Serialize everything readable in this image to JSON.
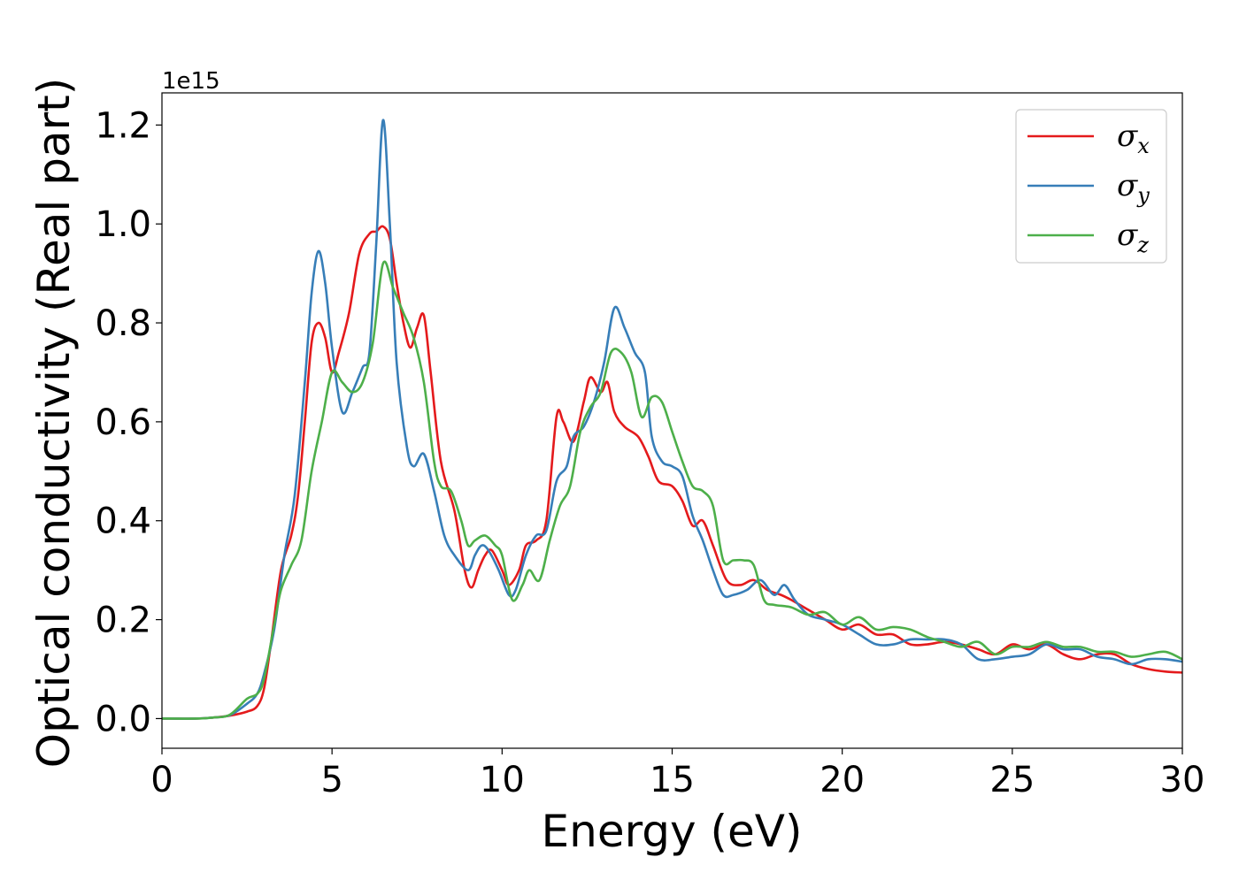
{
  "chart_data": {
    "type": "line",
    "title": "",
    "xlabel": "Energy (eV)",
    "ylabel": "Optical conductivity (Real part)",
    "y_offset_label": "1e15",
    "xlim": [
      0,
      30
    ],
    "ylim": [
      -0.06,
      1.265
    ],
    "x_ticks": [
      0,
      5,
      10,
      15,
      20,
      25,
      30
    ],
    "x_tick_labels": [
      "0",
      "5",
      "10",
      "15",
      "20",
      "25",
      "30"
    ],
    "y_ticks": [
      0.0,
      0.2,
      0.4,
      0.6,
      0.8,
      1.0,
      1.2
    ],
    "y_tick_labels": [
      "0.0",
      "0.2",
      "0.4",
      "0.6",
      "0.8",
      "1.0",
      "1.2"
    ],
    "grid": false,
    "legend_position": "top-right",
    "series": [
      {
        "name": "σx",
        "legend_symbol": "σ",
        "legend_subscript": "x",
        "color": "#e41a1c",
        "points": [
          [
            0,
            0
          ],
          [
            1,
            0
          ],
          [
            1.5,
            0.002
          ],
          [
            2,
            0.006
          ],
          [
            2.5,
            0.014
          ],
          [
            2.8,
            0.025
          ],
          [
            3.0,
            0.06
          ],
          [
            3.2,
            0.15
          ],
          [
            3.5,
            0.3
          ],
          [
            3.8,
            0.37
          ],
          [
            4.0,
            0.45
          ],
          [
            4.2,
            0.6
          ],
          [
            4.4,
            0.76
          ],
          [
            4.6,
            0.8
          ],
          [
            4.8,
            0.77
          ],
          [
            5.0,
            0.7
          ],
          [
            5.2,
            0.74
          ],
          [
            5.5,
            0.82
          ],
          [
            5.8,
            0.94
          ],
          [
            6.1,
            0.98
          ],
          [
            6.3,
            0.985
          ],
          [
            6.5,
            0.995
          ],
          [
            6.7,
            0.97
          ],
          [
            6.9,
            0.88
          ],
          [
            7.1,
            0.8
          ],
          [
            7.3,
            0.75
          ],
          [
            7.5,
            0.79
          ],
          [
            7.7,
            0.815
          ],
          [
            7.9,
            0.7
          ],
          [
            8.2,
            0.52
          ],
          [
            8.6,
            0.42
          ],
          [
            8.9,
            0.3
          ],
          [
            9.1,
            0.265
          ],
          [
            9.3,
            0.3
          ],
          [
            9.5,
            0.33
          ],
          [
            9.7,
            0.34
          ],
          [
            10.0,
            0.3
          ],
          [
            10.2,
            0.27
          ],
          [
            10.5,
            0.3
          ],
          [
            10.7,
            0.35
          ],
          [
            11.0,
            0.36
          ],
          [
            11.3,
            0.4
          ],
          [
            11.6,
            0.61
          ],
          [
            11.8,
            0.6
          ],
          [
            12.1,
            0.56
          ],
          [
            12.4,
            0.64
          ],
          [
            12.6,
            0.69
          ],
          [
            12.9,
            0.66
          ],
          [
            13.1,
            0.68
          ],
          [
            13.3,
            0.62
          ],
          [
            13.6,
            0.59
          ],
          [
            14.0,
            0.57
          ],
          [
            14.3,
            0.53
          ],
          [
            14.6,
            0.48
          ],
          [
            15.0,
            0.47
          ],
          [
            15.3,
            0.44
          ],
          [
            15.6,
            0.39
          ],
          [
            15.9,
            0.4
          ],
          [
            16.2,
            0.35
          ],
          [
            16.6,
            0.28
          ],
          [
            17.0,
            0.27
          ],
          [
            17.4,
            0.28
          ],
          [
            17.8,
            0.26
          ],
          [
            18.2,
            0.25
          ],
          [
            18.5,
            0.24
          ],
          [
            19.0,
            0.22
          ],
          [
            19.5,
            0.2
          ],
          [
            20.0,
            0.18
          ],
          [
            20.5,
            0.19
          ],
          [
            21.0,
            0.17
          ],
          [
            21.5,
            0.17
          ],
          [
            22.0,
            0.15
          ],
          [
            22.5,
            0.15
          ],
          [
            23.0,
            0.155
          ],
          [
            23.5,
            0.15
          ],
          [
            24.0,
            0.14
          ],
          [
            24.5,
            0.13
          ],
          [
            25.0,
            0.15
          ],
          [
            25.5,
            0.14
          ],
          [
            26.0,
            0.15
          ],
          [
            26.5,
            0.13
          ],
          [
            27.0,
            0.12
          ],
          [
            27.5,
            0.13
          ],
          [
            28.0,
            0.13
          ],
          [
            28.5,
            0.11
          ],
          [
            29.0,
            0.1
          ],
          [
            29.5,
            0.095
          ],
          [
            30.0,
            0.093
          ]
        ]
      },
      {
        "name": "σy",
        "legend_symbol": "σ",
        "legend_subscript": "y",
        "color": "#377eb8",
        "points": [
          [
            0,
            0
          ],
          [
            1,
            0
          ],
          [
            1.5,
            0.002
          ],
          [
            2,
            0.007
          ],
          [
            2.5,
            0.03
          ],
          [
            2.8,
            0.05
          ],
          [
            3.0,
            0.09
          ],
          [
            3.3,
            0.18
          ],
          [
            3.6,
            0.33
          ],
          [
            3.9,
            0.45
          ],
          [
            4.2,
            0.68
          ],
          [
            4.4,
            0.86
          ],
          [
            4.6,
            0.945
          ],
          [
            4.8,
            0.88
          ],
          [
            5.0,
            0.75
          ],
          [
            5.3,
            0.62
          ],
          [
            5.6,
            0.66
          ],
          [
            5.9,
            0.71
          ],
          [
            6.1,
            0.74
          ],
          [
            6.3,
            0.96
          ],
          [
            6.5,
            1.21
          ],
          [
            6.7,
            1.0
          ],
          [
            6.9,
            0.72
          ],
          [
            7.2,
            0.55
          ],
          [
            7.4,
            0.51
          ],
          [
            7.7,
            0.535
          ],
          [
            8.0,
            0.46
          ],
          [
            8.3,
            0.37
          ],
          [
            8.6,
            0.33
          ],
          [
            9.0,
            0.3
          ],
          [
            9.2,
            0.33
          ],
          [
            9.4,
            0.35
          ],
          [
            9.6,
            0.34
          ],
          [
            9.9,
            0.3
          ],
          [
            10.2,
            0.25
          ],
          [
            10.4,
            0.26
          ],
          [
            10.7,
            0.33
          ],
          [
            11.0,
            0.37
          ],
          [
            11.3,
            0.38
          ],
          [
            11.6,
            0.48
          ],
          [
            11.9,
            0.51
          ],
          [
            12.1,
            0.57
          ],
          [
            12.4,
            0.59
          ],
          [
            12.7,
            0.64
          ],
          [
            13.0,
            0.72
          ],
          [
            13.3,
            0.83
          ],
          [
            13.6,
            0.79
          ],
          [
            13.9,
            0.74
          ],
          [
            14.2,
            0.7
          ],
          [
            14.4,
            0.57
          ],
          [
            14.7,
            0.52
          ],
          [
            15.0,
            0.51
          ],
          [
            15.3,
            0.49
          ],
          [
            15.6,
            0.41
          ],
          [
            15.9,
            0.36
          ],
          [
            16.2,
            0.3
          ],
          [
            16.5,
            0.25
          ],
          [
            16.8,
            0.25
          ],
          [
            17.2,
            0.26
          ],
          [
            17.6,
            0.28
          ],
          [
            18.0,
            0.25
          ],
          [
            18.3,
            0.27
          ],
          [
            18.6,
            0.24
          ],
          [
            19.0,
            0.21
          ],
          [
            19.5,
            0.2
          ],
          [
            20.0,
            0.19
          ],
          [
            20.5,
            0.17
          ],
          [
            21.0,
            0.15
          ],
          [
            21.5,
            0.15
          ],
          [
            22.0,
            0.16
          ],
          [
            22.5,
            0.16
          ],
          [
            23.0,
            0.16
          ],
          [
            23.5,
            0.15
          ],
          [
            24.0,
            0.12
          ],
          [
            24.5,
            0.12
          ],
          [
            25.0,
            0.125
          ],
          [
            25.5,
            0.13
          ],
          [
            26.0,
            0.15
          ],
          [
            26.5,
            0.14
          ],
          [
            27.0,
            0.14
          ],
          [
            27.5,
            0.125
          ],
          [
            28.0,
            0.12
          ],
          [
            28.5,
            0.11
          ],
          [
            29.0,
            0.12
          ],
          [
            29.5,
            0.12
          ],
          [
            30.0,
            0.115
          ]
        ]
      },
      {
        "name": "σz",
        "legend_symbol": "σ",
        "legend_subscript": "z",
        "color": "#4daf4a",
        "points": [
          [
            0,
            0
          ],
          [
            1,
            0
          ],
          [
            1.5,
            0.002
          ],
          [
            2,
            0.008
          ],
          [
            2.5,
            0.04
          ],
          [
            2.8,
            0.05
          ],
          [
            3.0,
            0.08
          ],
          [
            3.3,
            0.19
          ],
          [
            3.5,
            0.26
          ],
          [
            3.8,
            0.31
          ],
          [
            4.1,
            0.36
          ],
          [
            4.4,
            0.5
          ],
          [
            4.7,
            0.6
          ],
          [
            5.0,
            0.7
          ],
          [
            5.3,
            0.68
          ],
          [
            5.6,
            0.66
          ],
          [
            5.9,
            0.68
          ],
          [
            6.2,
            0.76
          ],
          [
            6.5,
            0.92
          ],
          [
            6.8,
            0.87
          ],
          [
            7.1,
            0.82
          ],
          [
            7.4,
            0.77
          ],
          [
            7.7,
            0.68
          ],
          [
            8.0,
            0.52
          ],
          [
            8.2,
            0.47
          ],
          [
            8.5,
            0.46
          ],
          [
            8.8,
            0.4
          ],
          [
            9.0,
            0.35
          ],
          [
            9.2,
            0.36
          ],
          [
            9.5,
            0.37
          ],
          [
            9.8,
            0.35
          ],
          [
            10.0,
            0.33
          ],
          [
            10.3,
            0.24
          ],
          [
            10.6,
            0.27
          ],
          [
            10.8,
            0.3
          ],
          [
            11.1,
            0.28
          ],
          [
            11.4,
            0.36
          ],
          [
            11.7,
            0.43
          ],
          [
            12.0,
            0.47
          ],
          [
            12.3,
            0.58
          ],
          [
            12.6,
            0.63
          ],
          [
            12.9,
            0.66
          ],
          [
            13.2,
            0.74
          ],
          [
            13.5,
            0.74
          ],
          [
            13.8,
            0.7
          ],
          [
            14.1,
            0.61
          ],
          [
            14.4,
            0.65
          ],
          [
            14.7,
            0.64
          ],
          [
            15.0,
            0.58
          ],
          [
            15.3,
            0.52
          ],
          [
            15.6,
            0.47
          ],
          [
            15.9,
            0.46
          ],
          [
            16.2,
            0.43
          ],
          [
            16.5,
            0.32
          ],
          [
            16.8,
            0.32
          ],
          [
            17.1,
            0.32
          ],
          [
            17.4,
            0.31
          ],
          [
            17.7,
            0.24
          ],
          [
            18.0,
            0.23
          ],
          [
            18.5,
            0.225
          ],
          [
            19.0,
            0.21
          ],
          [
            19.5,
            0.215
          ],
          [
            20.0,
            0.19
          ],
          [
            20.5,
            0.205
          ],
          [
            21.0,
            0.18
          ],
          [
            21.5,
            0.185
          ],
          [
            22.0,
            0.18
          ],
          [
            22.5,
            0.165
          ],
          [
            23.0,
            0.155
          ],
          [
            23.5,
            0.145
          ],
          [
            24.0,
            0.155
          ],
          [
            24.5,
            0.13
          ],
          [
            25.0,
            0.145
          ],
          [
            25.5,
            0.145
          ],
          [
            26.0,
            0.155
          ],
          [
            26.5,
            0.145
          ],
          [
            27.0,
            0.145
          ],
          [
            27.5,
            0.135
          ],
          [
            28.0,
            0.135
          ],
          [
            28.5,
            0.125
          ],
          [
            29.0,
            0.13
          ],
          [
            29.5,
            0.135
          ],
          [
            30.0,
            0.12
          ]
        ]
      }
    ]
  }
}
